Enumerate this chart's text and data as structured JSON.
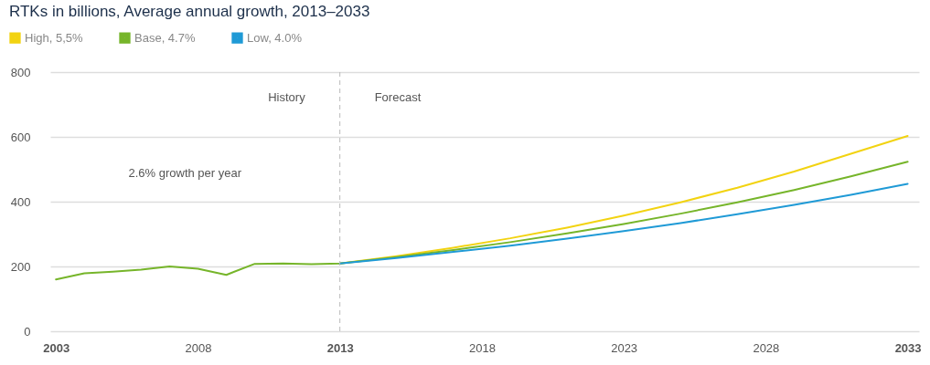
{
  "chart_data": {
    "type": "line",
    "title": "RTKs in billions, Average annual growth, 2013–2033",
    "series": [
      {
        "name": "High, 5,5%",
        "color": "#f2d311",
        "x": [
          2013,
          2015,
          2017,
          2019,
          2021,
          2023,
          2025,
          2027,
          2029,
          2031,
          2033
        ],
        "values": [
          209,
          232,
          258,
          287,
          320,
          357,
          398,
          443,
          493,
          548,
          603
        ]
      },
      {
        "name": "Base, 4.7%",
        "color": "#76b52a",
        "x": [
          2003,
          2004,
          2005,
          2006,
          2007,
          2008,
          2009,
          2010,
          2011,
          2012,
          2013,
          2015,
          2017,
          2019,
          2021,
          2023,
          2025,
          2027,
          2029,
          2031,
          2033
        ],
        "values": [
          160,
          179,
          184,
          190,
          200,
          193,
          174,
          208,
          209,
          207,
          209,
          229,
          251,
          275,
          302,
          331,
          363,
          398,
          436,
          478,
          523
        ]
      },
      {
        "name": "Low, 4.0%",
        "color": "#1f9ad6",
        "x": [
          2013,
          2015,
          2017,
          2019,
          2021,
          2023,
          2025,
          2027,
          2029,
          2031,
          2033
        ],
        "values": [
          209,
          226,
          245,
          264,
          286,
          309,
          334,
          361,
          390,
          421,
          455
        ]
      }
    ],
    "xlim": [
      2002.8,
      2033.4
    ],
    "xticks": [
      2003,
      2008,
      2013,
      2018,
      2023,
      2028,
      2033
    ],
    "ylim": [
      0,
      800
    ],
    "yticks": [
      0,
      200,
      400,
      600,
      800
    ],
    "grid": "y",
    "legend": "top left",
    "marker": "none",
    "line_style": "solid",
    "ref_lines": [
      {
        "axis": "x",
        "value": 2013,
        "line_style": "dashed",
        "color": "#bbbbbb"
      }
    ],
    "annotations": [
      "History",
      "Forecast",
      "2.6% growth per year"
    ]
  }
}
